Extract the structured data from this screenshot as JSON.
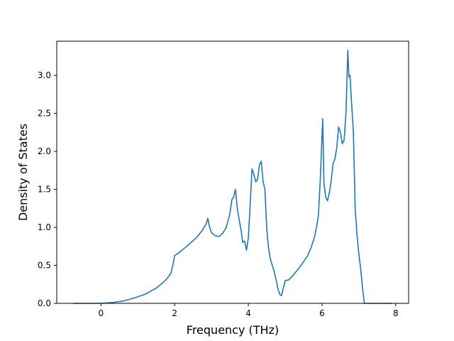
{
  "chart_data": {
    "type": "line",
    "title": "",
    "xlabel": "Frequency (THz)",
    "ylabel": "Density of States",
    "xlim": [
      -1.2,
      8.35
    ],
    "ylim": [
      0.0,
      3.45
    ],
    "xticks": [
      0,
      2,
      4,
      6,
      8
    ],
    "xtick_labels": [
      "0",
      "2",
      "4",
      "6",
      "8"
    ],
    "yticks": [
      0.0,
      0.5,
      1.0,
      1.5,
      2.0,
      2.5,
      3.0
    ],
    "ytick_labels": [
      "0.0",
      "0.5",
      "1.0",
      "1.5",
      "2.0",
      "2.5",
      "3.0"
    ],
    "grid": false,
    "line_color": "#1f77b4",
    "series": [
      {
        "x": [
          -0.75,
          -0.4,
          0.0,
          0.3,
          0.6,
          0.9,
          1.2,
          1.5,
          1.7,
          1.8,
          1.9,
          1.95,
          2.0,
          2.1,
          2.2,
          2.4,
          2.6,
          2.75,
          2.85,
          2.9,
          2.95,
          3.0,
          3.1,
          3.2,
          3.3,
          3.4,
          3.5,
          3.55,
          3.6,
          3.65,
          3.7,
          3.75,
          3.8,
          3.85,
          3.9,
          3.95,
          4.0,
          4.05,
          4.1,
          4.15,
          4.2,
          4.25,
          4.3,
          4.35,
          4.4,
          4.45,
          4.5,
          4.55,
          4.6,
          4.7,
          4.75,
          4.8,
          4.85,
          4.9,
          5.0,
          5.1,
          5.2,
          5.4,
          5.6,
          5.7,
          5.8,
          5.85,
          5.9,
          5.95,
          6.0,
          6.02,
          6.05,
          6.1,
          6.15,
          6.2,
          6.25,
          6.3,
          6.35,
          6.4,
          6.45,
          6.5,
          6.55,
          6.6,
          6.65,
          6.7,
          6.73,
          6.76,
          6.8,
          6.85,
          6.9,
          6.95,
          7.0,
          7.05,
          7.1,
          7.15,
          7.2,
          7.25,
          7.5,
          7.9
        ],
        "y": [
          0.0,
          0.0,
          0.0,
          0.01,
          0.03,
          0.07,
          0.12,
          0.2,
          0.28,
          0.33,
          0.4,
          0.5,
          0.63,
          0.66,
          0.7,
          0.78,
          0.87,
          0.96,
          1.04,
          1.12,
          1.0,
          0.93,
          0.89,
          0.88,
          0.92,
          1.0,
          1.18,
          1.36,
          1.4,
          1.5,
          1.25,
          1.1,
          0.97,
          0.8,
          0.82,
          0.7,
          0.86,
          1.3,
          1.77,
          1.7,
          1.6,
          1.63,
          1.82,
          1.87,
          1.6,
          1.5,
          0.98,
          0.72,
          0.58,
          0.42,
          0.32,
          0.2,
          0.12,
          0.1,
          0.3,
          0.31,
          0.36,
          0.48,
          0.62,
          0.73,
          0.88,
          1.0,
          1.15,
          1.6,
          2.2,
          2.43,
          1.6,
          1.4,
          1.35,
          1.46,
          1.62,
          1.84,
          1.9,
          2.05,
          2.32,
          2.25,
          2.1,
          2.15,
          2.5,
          3.33,
          2.98,
          3.0,
          2.65,
          2.27,
          1.25,
          0.9,
          0.65,
          0.45,
          0.2,
          0.0,
          0.0,
          0.0,
          0.0,
          0.0
        ]
      }
    ]
  }
}
